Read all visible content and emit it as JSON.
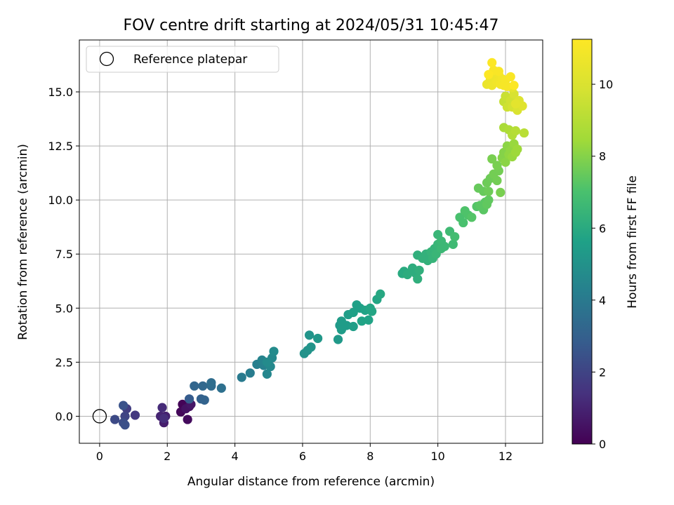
{
  "chart_data": {
    "type": "scatter",
    "title": "FOV centre drift starting at 2024/05/31 10:45:47",
    "xlabel": "Angular distance from reference (arcmin)",
    "ylabel": "Rotation from reference (arcmin)",
    "colorbar_label": "Hours from first FF file",
    "colormap": "viridis",
    "xlim": [
      -0.6,
      13.1
    ],
    "ylim": [
      -1.25,
      17.4
    ],
    "xticks": [
      0,
      2,
      4,
      6,
      8,
      10,
      12
    ],
    "xtick_labels": [
      "0",
      "2",
      "4",
      "6",
      "8",
      "10",
      "12"
    ],
    "yticks": [
      0.0,
      2.5,
      5.0,
      7.5,
      10.0,
      12.5,
      15.0
    ],
    "ytick_labels": [
      "0.0",
      "2.5",
      "5.0",
      "7.5",
      "10.0",
      "12.5",
      "15.0"
    ],
    "colorbar_range": [
      0,
      11.25
    ],
    "colorbar_ticks": [
      0,
      2,
      4,
      6,
      8,
      10
    ],
    "colorbar_tick_labels": [
      "0",
      "2",
      "4",
      "6",
      "8",
      "10"
    ],
    "grid": true,
    "legend": {
      "position": "top-left",
      "entries": [
        "Reference platepar"
      ]
    },
    "reference_point": {
      "x": 0,
      "y": 0,
      "label": "Reference platepar"
    },
    "series": [
      {
        "points": [
          [
            2.45,
            0.55,
            0.1
          ],
          [
            2.4,
            0.2,
            0.2
          ],
          [
            2.6,
            -0.15,
            0.3
          ],
          [
            2.65,
            0.45,
            0.4
          ],
          [
            2.55,
            0.35,
            0.5
          ],
          [
            2.7,
            0.55,
            0.6
          ],
          [
            1.9,
            -0.3,
            0.8
          ],
          [
            1.95,
            0.0,
            0.9
          ],
          [
            1.8,
            0.0,
            1.0
          ],
          [
            1.85,
            0.4,
            1.2
          ],
          [
            1.9,
            -0.1,
            1.3
          ],
          [
            1.05,
            0.05,
            1.6
          ],
          [
            0.8,
            0.35,
            1.8
          ],
          [
            0.75,
            0.0,
            2.0
          ],
          [
            0.45,
            -0.15,
            2.2
          ],
          [
            0.7,
            -0.3,
            2.3
          ],
          [
            0.75,
            -0.4,
            2.4
          ],
          [
            0.7,
            0.5,
            2.5
          ],
          [
            2.65,
            0.8,
            2.8
          ],
          [
            3.0,
            0.8,
            3.0
          ],
          [
            3.1,
            0.75,
            3.1
          ],
          [
            2.8,
            1.4,
            3.2
          ],
          [
            3.05,
            1.4,
            3.3
          ],
          [
            3.3,
            1.4,
            3.4
          ],
          [
            3.3,
            1.55,
            3.5
          ],
          [
            3.6,
            1.3,
            3.6
          ],
          [
            4.2,
            1.8,
            4.0
          ],
          [
            4.45,
            2.0,
            4.1
          ],
          [
            4.65,
            2.4,
            4.2
          ],
          [
            4.85,
            2.35,
            4.3
          ],
          [
            4.8,
            2.6,
            4.4
          ],
          [
            4.95,
            1.95,
            4.5
          ],
          [
            5.05,
            2.3,
            4.6
          ],
          [
            5.1,
            2.7,
            4.6
          ],
          [
            5.15,
            3.0,
            4.7
          ],
          [
            4.95,
            2.5,
            4.7
          ],
          [
            6.05,
            2.9,
            5.0
          ],
          [
            6.15,
            3.05,
            5.0
          ],
          [
            6.25,
            3.2,
            5.1
          ],
          [
            6.2,
            3.75,
            5.1
          ],
          [
            6.45,
            3.6,
            5.2
          ],
          [
            7.05,
            3.55,
            5.3
          ],
          [
            7.1,
            4.2,
            5.3
          ],
          [
            7.15,
            4.0,
            5.4
          ],
          [
            7.15,
            4.4,
            5.4
          ],
          [
            7.3,
            4.2,
            5.4
          ],
          [
            7.5,
            4.15,
            5.5
          ],
          [
            7.35,
            4.7,
            5.5
          ],
          [
            7.5,
            4.8,
            5.6
          ],
          [
            7.6,
            5.15,
            5.6
          ],
          [
            7.7,
            5.0,
            5.6
          ],
          [
            7.75,
            4.4,
            5.7
          ],
          [
            7.85,
            4.9,
            5.7
          ],
          [
            7.95,
            4.45,
            5.7
          ],
          [
            8.0,
            5.0,
            5.8
          ],
          [
            8.05,
            4.85,
            5.8
          ],
          [
            8.2,
            5.4,
            5.8
          ],
          [
            8.3,
            5.65,
            5.9
          ],
          [
            8.95,
            6.6,
            6.0
          ],
          [
            9.0,
            6.7,
            6.0
          ],
          [
            9.1,
            6.55,
            6.1
          ],
          [
            9.25,
            6.85,
            6.1
          ],
          [
            9.35,
            6.6,
            6.1
          ],
          [
            9.4,
            6.35,
            6.2
          ],
          [
            9.45,
            6.75,
            6.2
          ],
          [
            9.4,
            7.45,
            6.2
          ],
          [
            9.55,
            7.3,
            6.3
          ],
          [
            9.65,
            7.5,
            6.3
          ],
          [
            9.7,
            7.2,
            6.3
          ],
          [
            9.8,
            7.6,
            6.4
          ],
          [
            9.85,
            7.3,
            6.4
          ],
          [
            9.9,
            7.75,
            6.4
          ],
          [
            9.95,
            7.5,
            6.5
          ],
          [
            10.0,
            7.95,
            6.5
          ],
          [
            10.0,
            8.4,
            6.5
          ],
          [
            10.1,
            7.75,
            6.6
          ],
          [
            10.1,
            8.1,
            6.6
          ],
          [
            10.2,
            7.85,
            6.6
          ],
          [
            10.35,
            8.55,
            6.7
          ],
          [
            10.45,
            7.95,
            6.7
          ],
          [
            10.5,
            8.3,
            6.8
          ],
          [
            10.65,
            9.2,
            7.0
          ],
          [
            10.75,
            8.95,
            7.0
          ],
          [
            10.8,
            9.5,
            7.1
          ],
          [
            10.9,
            9.3,
            7.1
          ],
          [
            11.0,
            9.2,
            7.2
          ],
          [
            11.15,
            9.7,
            7.2
          ],
          [
            11.25,
            9.75,
            7.3
          ],
          [
            11.35,
            9.55,
            7.3
          ],
          [
            11.4,
            9.9,
            7.3
          ],
          [
            11.45,
            9.8,
            7.4
          ],
          [
            11.5,
            10.0,
            7.4
          ],
          [
            11.2,
            10.55,
            7.5
          ],
          [
            11.35,
            10.4,
            7.5
          ],
          [
            11.45,
            10.8,
            7.6
          ],
          [
            11.5,
            10.4,
            7.6
          ],
          [
            11.55,
            11.0,
            7.6
          ],
          [
            11.65,
            11.2,
            7.7
          ],
          [
            11.75,
            10.9,
            7.7
          ],
          [
            11.8,
            11.35,
            7.7
          ],
          [
            11.85,
            10.35,
            7.8
          ],
          [
            11.6,
            11.9,
            7.8
          ],
          [
            11.75,
            11.6,
            7.8
          ],
          [
            11.9,
            11.95,
            8.0
          ],
          [
            11.95,
            12.2,
            8.0
          ],
          [
            12.0,
            11.75,
            8.1
          ],
          [
            12.05,
            12.5,
            8.1
          ],
          [
            12.1,
            12.1,
            8.2
          ],
          [
            12.15,
            12.3,
            8.2
          ],
          [
            12.2,
            12.0,
            8.3
          ],
          [
            12.25,
            12.6,
            8.3
          ],
          [
            12.3,
            12.2,
            8.4
          ],
          [
            12.35,
            12.35,
            8.4
          ],
          [
            11.95,
            13.35,
            8.7
          ],
          [
            12.1,
            13.25,
            8.8
          ],
          [
            12.2,
            13.0,
            8.9
          ],
          [
            12.3,
            13.2,
            9.0
          ],
          [
            12.55,
            13.1,
            9.1
          ],
          [
            11.95,
            14.55,
            9.4
          ],
          [
            12.0,
            14.8,
            9.5
          ],
          [
            12.05,
            14.3,
            9.6
          ],
          [
            12.15,
            14.6,
            9.7
          ],
          [
            12.2,
            14.3,
            9.8
          ],
          [
            12.25,
            14.9,
            9.9
          ],
          [
            12.35,
            14.15,
            10.0
          ],
          [
            12.4,
            14.6,
            10.1
          ],
          [
            12.5,
            14.35,
            10.2
          ],
          [
            12.3,
            14.45,
            10.3
          ],
          [
            12.2,
            15.2,
            10.3
          ],
          [
            11.45,
            15.35,
            10.6
          ],
          [
            11.55,
            15.55,
            10.6
          ],
          [
            11.6,
            15.3,
            10.7
          ],
          [
            11.7,
            15.65,
            10.7
          ],
          [
            11.75,
            15.45,
            10.8
          ],
          [
            11.8,
            15.8,
            10.8
          ],
          [
            11.85,
            15.35,
            10.9
          ],
          [
            11.9,
            15.6,
            10.9
          ],
          [
            11.95,
            15.3,
            11.0
          ],
          [
            12.0,
            15.55,
            11.0
          ],
          [
            12.05,
            15.25,
            11.0
          ],
          [
            12.15,
            15.7,
            11.1
          ],
          [
            11.65,
            16.0,
            11.1
          ],
          [
            11.8,
            15.95,
            11.1
          ],
          [
            11.6,
            16.35,
            11.2
          ],
          [
            11.5,
            15.8,
            11.2
          ],
          [
            12.25,
            15.3,
            11.2
          ]
        ]
      }
    ]
  }
}
